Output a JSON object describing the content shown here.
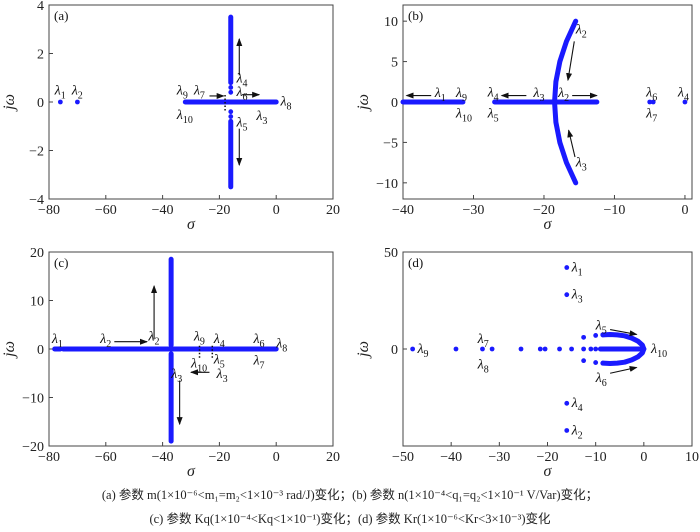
{
  "colors": {
    "locus": "#1a1aff",
    "axis": "#444444",
    "arrow": "#111111"
  },
  "chart_data": [
    {
      "type": "scatter",
      "panel_label": "(a)",
      "xlabel": "σ",
      "ylabel": "jω",
      "xlim": [
        -80,
        20
      ],
      "ylim": [
        -4,
        4
      ],
      "xticks": [
        -80,
        -60,
        -40,
        -20,
        0,
        20
      ],
      "yticks": [
        -4,
        -2,
        0,
        2,
        4
      ],
      "points": [
        [
          -76,
          0
        ],
        [
          -70,
          0
        ],
        [
          -16,
          0.6
        ],
        [
          -16,
          0.4
        ],
        [
          -16,
          -0.4
        ],
        [
          -16,
          -0.6
        ],
        [
          -5,
          0
        ]
      ],
      "thick_paths": [
        [
          [
            -32,
            0
          ],
          [
            0,
            0
          ]
        ],
        [
          [
            -16,
            0.8
          ],
          [
            -16,
            3.5
          ]
        ],
        [
          [
            -16,
            -0.8
          ],
          [
            -16,
            -3.5
          ]
        ]
      ],
      "dotted": [
        [
          [
            -18,
            -0.35
          ],
          [
            -18,
            0.35
          ]
        ]
      ],
      "arrows": [
        [
          [
            -13,
            1.1
          ],
          [
            -13,
            2.6
          ]
        ],
        [
          [
            -13,
            -1.1
          ],
          [
            -13,
            -2.6
          ]
        ],
        [
          [
            -23.5,
            0.25
          ],
          [
            -18.5,
            0.25
          ]
        ],
        [
          [
            -12,
            0.3
          ],
          [
            -6,
            0.3
          ]
        ]
      ],
      "labels": [
        {
          "sub": "1",
          "at": [
            -78,
            0.3
          ]
        },
        {
          "sub": "2",
          "at": [
            -72,
            0.3
          ]
        },
        {
          "sub": "9",
          "at": [
            -35,
            0.3
          ]
        },
        {
          "sub": "7",
          "at": [
            -29,
            0.3
          ]
        },
        {
          "sub": "10",
          "at": [
            -35,
            -0.7
          ]
        },
        {
          "sub": "4",
          "at": [
            -14,
            0.8
          ]
        },
        {
          "sub": "6",
          "at": [
            -14,
            0.25
          ]
        },
        {
          "sub": "3",
          "at": [
            -7,
            -0.75
          ]
        },
        {
          "sub": "8",
          "at": [
            1.5,
            -0.15
          ]
        },
        {
          "sub": "5",
          "at": [
            -14,
            -1.0
          ]
        }
      ]
    },
    {
      "type": "scatter",
      "panel_label": "(b)",
      "xlabel": "σ",
      "ylabel": "jω",
      "xlim": [
        -40,
        1
      ],
      "ylim": [
        -12,
        12
      ],
      "xticks": [
        -40,
        -30,
        -20,
        -10,
        0
      ],
      "yticks": [
        -10,
        -5,
        0,
        5,
        10
      ],
      "points": [
        [
          -5,
          0
        ],
        [
          -4.5,
          0
        ],
        [
          0,
          0
        ]
      ],
      "thick_paths": [
        [
          [
            -40,
            0
          ],
          [
            -31.5,
            0
          ]
        ],
        [
          [
            -27,
            0
          ],
          [
            -12.5,
            0
          ]
        ],
        [
          [
            -15.5,
            10
          ],
          [
            -16.81,
            7.5
          ],
          [
            -17.75,
            5
          ],
          [
            -18.31,
            2.5
          ],
          [
            -18.5,
            0
          ],
          [
            -18.31,
            -2.5
          ],
          [
            -17.75,
            -5
          ],
          [
            -16.81,
            -7.5
          ],
          [
            -15.5,
            -10
          ]
        ]
      ],
      "dotted": [],
      "arrows": [
        [
          [
            -36,
            0.8
          ],
          [
            -39.5,
            0.8
          ]
        ],
        [
          [
            -22.5,
            0.8
          ],
          [
            -26,
            0.8
          ]
        ],
        [
          [
            -16,
            0.8
          ],
          [
            -12.5,
            0.8
          ]
        ],
        [
          [
            -15.7,
            7.5
          ],
          [
            -16.6,
            2.7
          ]
        ],
        [
          [
            -15.6,
            -6.8
          ],
          [
            -16.5,
            -3.5
          ]
        ]
      ],
      "labels": [
        {
          "sub": "1",
          "at": [
            -35.5,
            0.6
          ]
        },
        {
          "sub": "9",
          "at": [
            -32.5,
            0.6
          ]
        },
        {
          "sub": "10",
          "at": [
            -32.5,
            -1.9
          ]
        },
        {
          "sub": "4",
          "at": [
            -28,
            0.7
          ]
        },
        {
          "sub": "5",
          "at": [
            -28,
            -1.9
          ]
        },
        {
          "sub": "3",
          "at": [
            -21.5,
            0.6
          ]
        },
        {
          "sub": "2",
          "at": [
            -18,
            0.6
          ]
        },
        {
          "sub": "2",
          "at": [
            -15.5,
            8.5
          ]
        },
        {
          "sub": "3",
          "at": [
            -15.5,
            -8
          ]
        },
        {
          "sub": "6",
          "at": [
            -5.5,
            0.7
          ]
        },
        {
          "sub": "7",
          "at": [
            -5.5,
            -1.9
          ]
        },
        {
          "sub": "4",
          "at": [
            -1,
            0.7
          ]
        }
      ]
    },
    {
      "type": "scatter",
      "panel_label": "(c)",
      "xlabel": "σ",
      "ylabel": "jω",
      "xlim": [
        -80,
        20
      ],
      "ylim": [
        -20,
        20
      ],
      "xticks": [
        -80,
        -60,
        -40,
        -20,
        0,
        20
      ],
      "yticks": [
        -20,
        -10,
        0,
        10,
        20
      ],
      "points": [],
      "thick_paths": [
        [
          [
            -78,
            0
          ],
          [
            -76,
            0
          ]
        ],
        [
          [
            -75,
            0
          ],
          [
            0,
            0
          ]
        ],
        [
          [
            -37,
            0.8
          ],
          [
            -37,
            18.5
          ]
        ],
        [
          [
            -37,
            -1
          ],
          [
            -37,
            -19
          ]
        ]
      ],
      "dotted": [
        [
          [
            -27,
            -1.8
          ],
          [
            -27,
            1
          ]
        ],
        [
          [
            -22.5,
            -1.8
          ],
          [
            -22.5,
            1
          ]
        ]
      ],
      "arrows": [
        [
          [
            -43,
            2
          ],
          [
            -43,
            13
          ]
        ],
        [
          [
            -57,
            1.5
          ],
          [
            -45.5,
            1.5
          ]
        ],
        [
          [
            -23.5,
            -4.8
          ],
          [
            -30,
            -4.8
          ]
        ],
        [
          [
            -34,
            -6.5
          ],
          [
            -34,
            -15.5
          ]
        ]
      ],
      "labels": [
        {
          "sub": "1",
          "at": [
            -79,
            1.2
          ]
        },
        {
          "sub": "2",
          "at": [
            -62,
            1.2
          ]
        },
        {
          "sub": "2",
          "at": [
            -45,
            1.8
          ]
        },
        {
          "sub": "9",
          "at": [
            -29,
            1.8
          ]
        },
        {
          "sub": "4",
          "at": [
            -22,
            1.2
          ]
        },
        {
          "sub": "6",
          "at": [
            -8,
            1.2
          ]
        },
        {
          "sub": "8",
          "at": [
            0,
            0.3
          ]
        },
        {
          "sub": "10",
          "at": [
            -30,
            -3.8
          ]
        },
        {
          "sub": "5",
          "at": [
            -22,
            -3.0
          ]
        },
        {
          "sub": "7",
          "at": [
            -8,
            -3.2
          ]
        },
        {
          "sub": "3",
          "at": [
            -37,
            -6
          ]
        },
        {
          "sub": "3",
          "at": [
            -21,
            -6
          ]
        }
      ]
    },
    {
      "type": "scatter",
      "panel_label": "(d)",
      "xlabel": "σ",
      "ylabel": "jω",
      "xlim": [
        -50,
        10
      ],
      "ylim": [
        -70,
        50
      ],
      "xticks": [
        -50,
        -40,
        -30,
        -20,
        -10,
        0,
        10
      ],
      "yticks": [
        0,
        50
      ],
      "points": [
        [
          -16,
          42
        ],
        [
          -16,
          28
        ],
        [
          -16,
          -28
        ],
        [
          -16,
          -42
        ],
        [
          -48,
          0
        ],
        [
          -39,
          0
        ],
        [
          -33.5,
          0
        ],
        [
          -31.5,
          0
        ],
        [
          -25.5,
          0
        ],
        [
          -21.5,
          0
        ],
        [
          -20.5,
          0
        ],
        [
          -17.5,
          0
        ],
        [
          -15,
          0
        ],
        [
          -12.5,
          0
        ],
        [
          -11,
          0
        ],
        [
          -10,
          0
        ],
        [
          -9,
          0
        ],
        [
          -12.5,
          6
        ],
        [
          -10,
          7
        ],
        [
          -8.5,
          7.3
        ],
        [
          -12.5,
          -6
        ],
        [
          -10,
          -7
        ],
        [
          -8.5,
          -7.3
        ]
      ],
      "thick_paths": [
        [
          [
            -9,
            0
          ],
          [
            0,
            0
          ]
        ],
        [
          [
            -8.5,
            7.3
          ],
          [
            -7,
            7.5
          ],
          [
            -5.5,
            7.3
          ],
          [
            -4,
            6.8
          ],
          [
            -2.5,
            5.6
          ],
          [
            -1.2,
            4
          ],
          [
            -0.3,
            2
          ],
          [
            0,
            0
          ],
          [
            -0.3,
            -2
          ],
          [
            -1.2,
            -4
          ],
          [
            -2.5,
            -5.6
          ],
          [
            -4,
            -6.8
          ],
          [
            -5.5,
            -7.3
          ],
          [
            -7,
            -7.5
          ],
          [
            -8.5,
            -7.3
          ]
        ]
      ],
      "dotted": [],
      "arrows": [
        [
          [
            -7,
            10
          ],
          [
            -1.5,
            7.5
          ]
        ],
        [
          [
            -7,
            -12.5
          ],
          [
            -1.5,
            -9.5
          ]
        ]
      ],
      "labels": [
        {
          "sub": "1",
          "at": [
            -15,
            40
          ]
        },
        {
          "sub": "3",
          "at": [
            -15,
            26
          ]
        },
        {
          "sub": "5",
          "at": [
            -10,
            10
          ]
        },
        {
          "sub": "7",
          "at": [
            -34.5,
            3
          ]
        },
        {
          "sub": "9",
          "at": [
            -47,
            -2
          ]
        },
        {
          "sub": "8",
          "at": [
            -34.5,
            -10
          ]
        },
        {
          "sub": "10",
          "at": [
            1.5,
            -2
          ]
        },
        {
          "sub": "6",
          "at": [
            -10,
            -17
          ]
        },
        {
          "sub": "4",
          "at": [
            -15,
            -30
          ]
        },
        {
          "sub": "2",
          "at": [
            -15,
            -44
          ]
        }
      ]
    }
  ],
  "lambda_symbol": "λ",
  "caption": {
    "line1": "(a)  参数 m(1×10⁻⁶<m₁=m₂<1×10⁻³ rad/J)变化；(b)  参数 n(1×10⁻⁴<q₁=q₂<1×10⁻¹ V/Var)变化；",
    "line2": "(c)  参数 Kq(1×10⁻⁴<Kq<1×10⁻¹)变化；(d)  参数 Kr(1×10⁻⁶<Kr<3×10⁻³)变化"
  }
}
